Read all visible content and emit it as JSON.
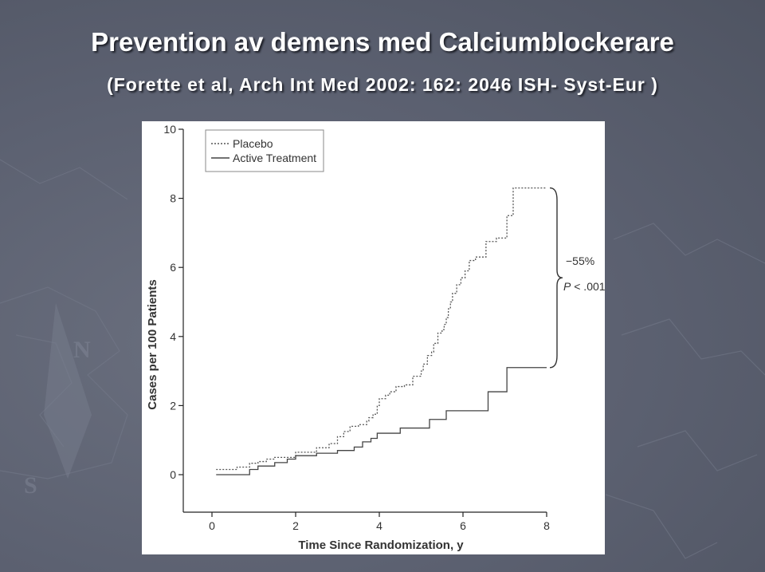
{
  "slide": {
    "title": "Prevention av demens med Calciumblockerare",
    "subtitle": "(Forette et al, Arch Int Med 2002: 162: 2046 ISH- Syst-Eur )"
  },
  "chart_data": {
    "type": "line",
    "title": "",
    "xlabel": "Time Since Randomization, y",
    "ylabel": "Cases per 100 Patients",
    "xlim": [
      0,
      8
    ],
    "ylim": [
      0,
      10
    ],
    "xticks": [
      0,
      2,
      4,
      6,
      8
    ],
    "yticks": [
      0,
      2,
      4,
      6,
      8,
      10
    ],
    "grid": false,
    "legend_position": "top-left",
    "series": [
      {
        "name": "Placebo",
        "style": "dotted",
        "color": "#555555",
        "x": [
          0.1,
          0.6,
          0.9,
          1.1,
          1.3,
          1.5,
          2.0,
          2.5,
          2.8,
          3.0,
          3.15,
          3.3,
          3.5,
          3.7,
          3.75,
          3.85,
          3.95,
          4.0,
          4.15,
          4.25,
          4.4,
          4.6,
          4.8,
          5.0,
          5.05,
          5.15,
          5.25,
          5.3,
          5.4,
          5.5,
          5.55,
          5.6,
          5.65,
          5.7,
          5.75,
          5.85,
          5.95,
          6.05,
          6.15,
          6.3,
          6.55,
          6.8,
          7.05,
          7.2,
          8.0
        ],
        "y": [
          0.15,
          0.22,
          0.33,
          0.38,
          0.45,
          0.5,
          0.65,
          0.78,
          0.9,
          1.1,
          1.25,
          1.4,
          1.45,
          1.55,
          1.65,
          1.75,
          2.0,
          2.2,
          2.3,
          2.4,
          2.55,
          2.6,
          2.85,
          3.0,
          3.2,
          3.45,
          3.55,
          3.8,
          4.1,
          4.2,
          4.35,
          4.55,
          4.8,
          5.0,
          5.25,
          5.5,
          5.7,
          5.9,
          6.2,
          6.3,
          6.75,
          6.85,
          7.5,
          8.3,
          8.3
        ]
      },
      {
        "name": "Active Treatment",
        "style": "solid",
        "color": "#444444",
        "x": [
          0.1,
          0.9,
          1.1,
          1.5,
          1.8,
          2.0,
          2.5,
          3.0,
          3.4,
          3.6,
          3.8,
          3.95,
          4.5,
          5.2,
          5.6,
          6.6,
          7.05,
          8.0
        ],
        "y": [
          0.0,
          0.15,
          0.25,
          0.35,
          0.45,
          0.55,
          0.62,
          0.7,
          0.8,
          0.95,
          1.05,
          1.2,
          1.35,
          1.6,
          1.85,
          2.4,
          3.1,
          3.1
        ]
      }
    ],
    "annotations": [
      {
        "text": "−55%",
        "bracket": true
      },
      {
        "text_italic": "P",
        "text": " < .001"
      }
    ]
  }
}
